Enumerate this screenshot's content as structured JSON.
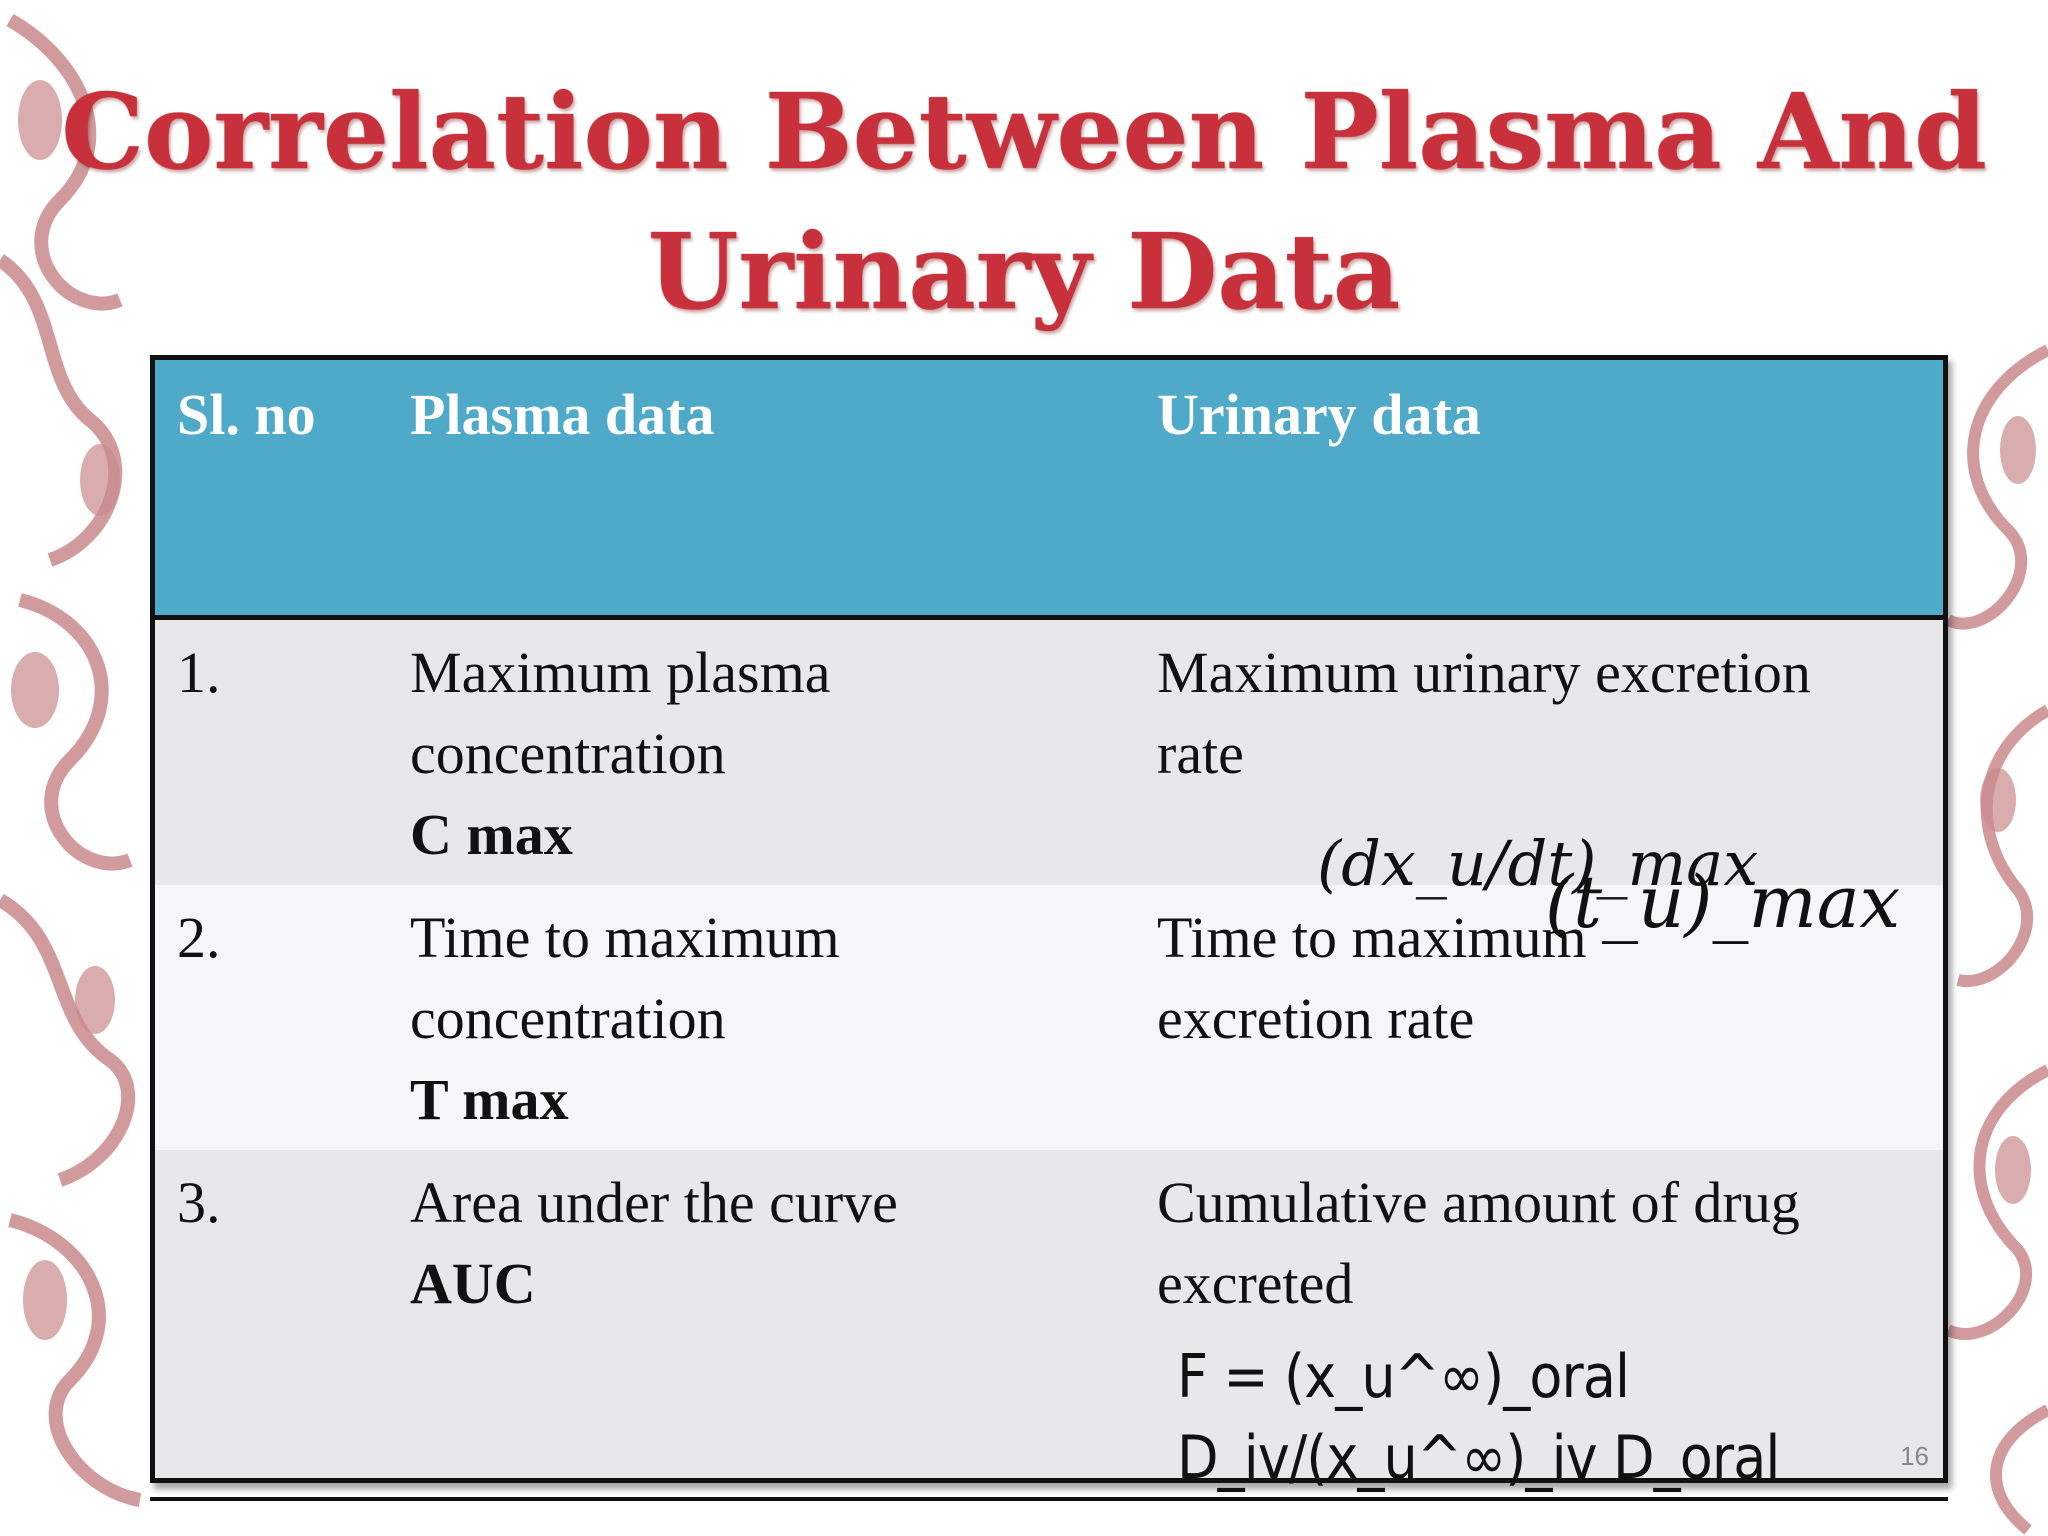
{
  "slide": {
    "title_line1": "Correlation Between Plasma And",
    "title_line2": "Urinary Data",
    "page_number": "16",
    "colors": {
      "title": "#c8313b",
      "header_bg": "#4fa9c9",
      "row_odd": "#e8e7ea",
      "row_even": "#f6f6f8",
      "decor": "#c98a8c"
    }
  },
  "table": {
    "headers": [
      "Sl. no",
      "Plasma data",
      "Urinary data"
    ],
    "rows": [
      {
        "no": "1.",
        "plasma_line1": "Maximum plasma",
        "plasma_line2": "concentration",
        "plasma_term": "C max",
        "urinary_line1": "Maximum urinary excretion",
        "urinary_line2": "rate",
        "urinary_formula": "(dx_u/dt)_max"
      },
      {
        "no": "2.",
        "plasma_line1": "Time to maximum",
        "plasma_line2": "concentration",
        "plasma_term": "T max",
        "urinary_line1": "Time to maximum",
        "urinary_line2": "excretion rate",
        "urinary_formula": "(t_u)_max"
      },
      {
        "no": "3.",
        "plasma_line1": "Area under the curve",
        "plasma_term": "AUC",
        "urinary_line1": "Cumulative amount of drug",
        "urinary_line2": "excreted",
        "urinary_formula": "F = (x_u^∞)_oral D_iv/(x_u^∞)_iv D_oral"
      }
    ]
  }
}
